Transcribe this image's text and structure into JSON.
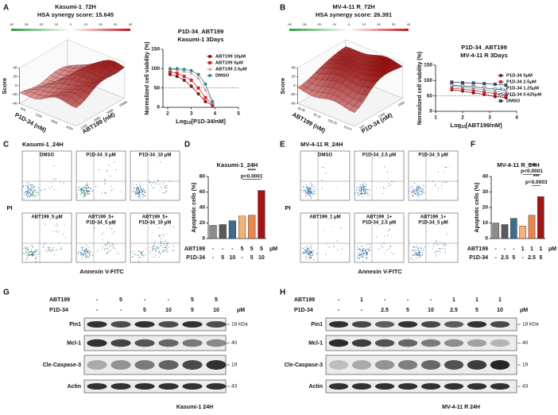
{
  "panel_labels": [
    "A",
    "B",
    "C",
    "D",
    "E",
    "F",
    "G",
    "H"
  ],
  "surfaces": [
    {
      "title": "Kasumi-1_72H",
      "subtitle": "HSA synergy score: 15.645",
      "colorbar_ticks": [
        -40,
        -30,
        -20,
        -10,
        0,
        10,
        20,
        30,
        40
      ],
      "z_label": "Score",
      "z_ticks": [
        -40,
        -20,
        0,
        20,
        40
      ],
      "left_axis_label": "P1D-34 (nM)",
      "left_axis_ticks": [
        625,
        1250,
        2500,
        5000
      ],
      "right_axis_label": "ABT199 (nM)",
      "right_axis_ticks": [
        1250,
        2500,
        5000,
        10000
      ]
    },
    {
      "title": "MV-4-11 R_72H",
      "subtitle": "HSA synergy score: 26.391",
      "colorbar_ticks": [
        -40,
        -30,
        -20,
        -10,
        0,
        10,
        20,
        30,
        40
      ],
      "z_label": "Score",
      "z_ticks": [
        -40,
        -20,
        0,
        20,
        40
      ],
      "left_axis_label": "ABT199 (nM)",
      "left_axis_ticks": [
        39.06,
        78.13,
        156.25,
        312.5
      ],
      "right_axis_label": "P1D-34 (nM)",
      "right_axis_ticks": [
        625,
        1250,
        2500
      ]
    }
  ],
  "chart_data": [
    {
      "type": "line",
      "title": "P1D-34_ABT199",
      "subtitle": "Kasumi-1 3Days",
      "x_label": {
        "text": "Log",
        "sub": "10",
        "tail": "[P1D-34/nM]"
      },
      "y_label": "Normalized cell viability (%)",
      "x": [
        2.1,
        2.4,
        2.7,
        3.0,
        3.3,
        3.6,
        3.9
      ],
      "xlim": [
        1.8,
        5
      ],
      "xticks": [
        2,
        3,
        4,
        5
      ],
      "ylim": [
        0,
        150
      ],
      "yticks": [
        0,
        50,
        100,
        150
      ],
      "hline": 50,
      "series": [
        {
          "name": "ABT199 10μM",
          "color": "#7b1010",
          "marker": "circle",
          "values": [
            85,
            80,
            70,
            55,
            35,
            15,
            5
          ]
        },
        {
          "name": "ABT199 5μM",
          "color": "#d62728",
          "marker": "square",
          "values": [
            92,
            88,
            80,
            70,
            50,
            25,
            8
          ]
        },
        {
          "name": "ABT199 2.5μM",
          "color": "#e88aa0",
          "marker": "triangle",
          "values": [
            98,
            97,
            93,
            88,
            75,
            45,
            12
          ]
        },
        {
          "name": "DMSO",
          "color": "#2a8a8a",
          "marker": "circle",
          "values": [
            100,
            100,
            98,
            95,
            85,
            60,
            15
          ]
        }
      ]
    },
    {
      "type": "line",
      "title": "P1D-34_ABT199",
      "subtitle": "MV-4-11 R 3Days",
      "x_label": {
        "text": "Log",
        "sub": "10",
        "tail": "[ABT199/nM]"
      },
      "y_label": "Normalized cell viability (%)",
      "x": [
        1.6,
        2.0,
        2.4,
        2.8,
        3.2,
        3.6
      ],
      "xlim": [
        1,
        4
      ],
      "xticks": [
        1,
        2,
        3,
        4
      ],
      "ylim": [
        0,
        150
      ],
      "yticks": [
        0,
        50,
        100,
        150
      ],
      "hline": 50,
      "series": [
        {
          "name": "P1D-34 5μM",
          "color": "#7b1010",
          "marker": "circle",
          "values": [
            70,
            66,
            60,
            55,
            48,
            45
          ]
        },
        {
          "name": "P1D-34 2.5μM",
          "color": "#d62728",
          "marker": "square",
          "values": [
            75,
            72,
            68,
            62,
            58,
            52
          ]
        },
        {
          "name": "P1D-34 1.25μM",
          "color": "#6fa8d6",
          "marker": "triangle",
          "values": [
            82,
            78,
            74,
            70,
            65,
            60
          ]
        },
        {
          "name": "P1D-34 0.625μM",
          "color": "#555555",
          "marker": "triangle-down",
          "values": [
            85,
            82,
            80,
            76,
            72,
            68
          ]
        },
        {
          "name": "DMSO",
          "color": "#334d66",
          "marker": "square",
          "values": [
            95,
            93,
            92,
            90,
            88,
            85
          ]
        }
      ]
    },
    {
      "type": "bar",
      "title": "Kasumi-1_24H",
      "y_label": "Apoptotic cells (%)",
      "values": [
        17,
        18,
        23,
        29,
        30,
        62
      ],
      "colors": [
        "#8c8c8c",
        "#5a5a5a",
        "#3e6d8e",
        "#f3b27a",
        "#e8864f",
        "#a31515"
      ],
      "ylim": [
        0,
        80
      ],
      "yticks": [
        0,
        20,
        40,
        60,
        80
      ],
      "conditions": [
        {
          "label": "ABT199",
          "values": [
            "-",
            "-",
            "-",
            5,
            5,
            5
          ]
        },
        {
          "label": "P1D-34",
          "values": [
            "-",
            5,
            10,
            "-",
            5,
            10
          ]
        }
      ],
      "condition_unit": "μM",
      "annotations": [
        {
          "stars": "****",
          "p": "p<0.0001"
        }
      ]
    },
    {
      "type": "bar",
      "title": "MV-4-11 R_24H",
      "y_label": "Apoptotic cells (%)",
      "values": [
        10,
        9,
        13,
        8,
        15,
        27
      ],
      "colors": [
        "#8c8c8c",
        "#5a5a5a",
        "#3e6d8e",
        "#f3b27a",
        "#e8864f",
        "#a31515"
      ],
      "ylim": [
        0,
        40
      ],
      "yticks": [
        0,
        10,
        20,
        30,
        40
      ],
      "conditions": [
        {
          "label": "ABT199",
          "values": [
            "-",
            "-",
            "-",
            1,
            1,
            1
          ]
        },
        {
          "label": "P1D-34",
          "values": [
            "-",
            2.5,
            5,
            "-",
            2.5,
            5
          ]
        }
      ],
      "condition_unit": "μM",
      "annotations": [
        {
          "stars": "****",
          "p": "p<0.0001"
        },
        {
          "stars": "***",
          "p": "p=0.0003"
        }
      ]
    }
  ],
  "flow": [
    {
      "title": "Kasumi-1_24H",
      "y_label": "PI",
      "x_label": "Annexin V-FITC",
      "plots": [
        [
          "DMSO"
        ],
        [
          "P1D-34_5 μM"
        ],
        [
          "P1D-34_10 μM"
        ],
        [
          "ABT199_5 μM"
        ],
        [
          "ABT199_5+",
          "P1D-34_5 μM"
        ],
        [
          "ABT199_5+",
          "P1D-34_10 μM"
        ]
      ]
    },
    {
      "title": "MV-4-11 R_24H",
      "y_label": "PI",
      "x_label": "Annexin V-FITC",
      "plots": [
        [
          "DMSO"
        ],
        [
          "P1D-34_2.5 μM"
        ],
        [
          "P1D-34_5 μM"
        ],
        [
          "ABT199_1 μM"
        ],
        [
          "ABT199_1+",
          "P1D-34_2.5 μM"
        ],
        [
          "ABT199_1+",
          "P1D-34_5 μM"
        ]
      ]
    }
  ],
  "blots": [
    {
      "rows": [
        {
          "label": "ABT199",
          "values": [
            "-",
            5,
            "-",
            "-",
            5,
            5
          ]
        },
        {
          "label": "P1D-34",
          "values": [
            "-",
            "-",
            5,
            10,
            5,
            10
          ]
        }
      ],
      "unit": "μM",
      "bands": [
        {
          "name": "Pin1",
          "size": "18 kDa"
        },
        {
          "name": "Mcl-1",
          "size": "40"
        },
        {
          "name": "Cle-Caspase-3",
          "size": "19"
        },
        {
          "name": "Actin",
          "size": "43"
        }
      ],
      "footer": "Kasumi-1 24H"
    },
    {
      "rows": [
        {
          "label": "ABT199",
          "values": [
            "-",
            1,
            "-",
            "-",
            "-",
            1,
            1,
            1
          ]
        },
        {
          "label": "P1D-34",
          "values": [
            "-",
            "-",
            2.5,
            5,
            10,
            2.5,
            5,
            10
          ]
        }
      ],
      "unit": "μM",
      "bands": [
        {
          "name": "Pin1",
          "size": "18 kDa"
        },
        {
          "name": "Mcl-1",
          "size": "40"
        },
        {
          "name": "Cle-Caspase-3",
          "size": "19"
        },
        {
          "name": "Actin",
          "size": "43"
        }
      ],
      "footer": "MV-4-11 R 24H"
    }
  ]
}
